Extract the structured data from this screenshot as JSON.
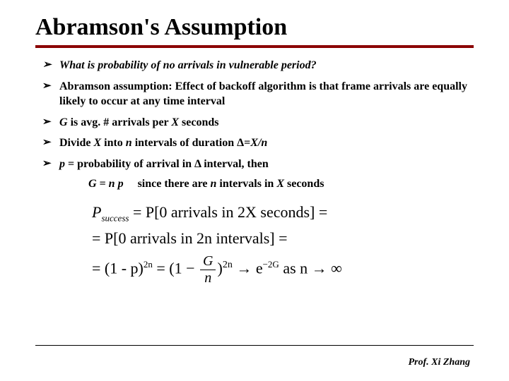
{
  "title": "Abramson's Assumption",
  "bullets": [
    {
      "text": "What is probability of no arrivals in vulnerable period?",
      "italic": true
    },
    {
      "text": "Abramson assumption:  Effect of backoff algorithm is that frame arrivals are equally likely to occur at any time interval",
      "italic": false
    },
    {
      "text": "G is avg. # arrivals per X seconds",
      "italic": false
    },
    {
      "text": "Divide X into n intervals of duration Δ=X/n",
      "italic": false
    },
    {
      "text": "p = probability of arrival in Δ interval, then",
      "italic": false
    }
  ],
  "indent_equation": {
    "lhs": "G = n p",
    "rhs": "since there are n intervals in X seconds"
  },
  "formula": {
    "line1_lhs": "P",
    "line1_sub": "success",
    "line1_rhs": " = P[0 arrivals in 2X seconds] =",
    "line2": "= P[0 arrivals in 2n intervals] =",
    "line3_a": "= (1 - p)",
    "line3_exp1": "2n",
    "line3_b": " = (1 − ",
    "line3_frac_num": "G",
    "line3_frac_den": "n",
    "line3_c": ")",
    "line3_exp2": "2n",
    "line3_arrow": " → e",
    "line3_exp3": "−2G",
    "line3_tail": "  as n → ∞"
  },
  "footer": "Prof. Xi Zhang",
  "colors": {
    "rule": "#8b0000",
    "text": "#000000",
    "background": "#ffffff"
  }
}
